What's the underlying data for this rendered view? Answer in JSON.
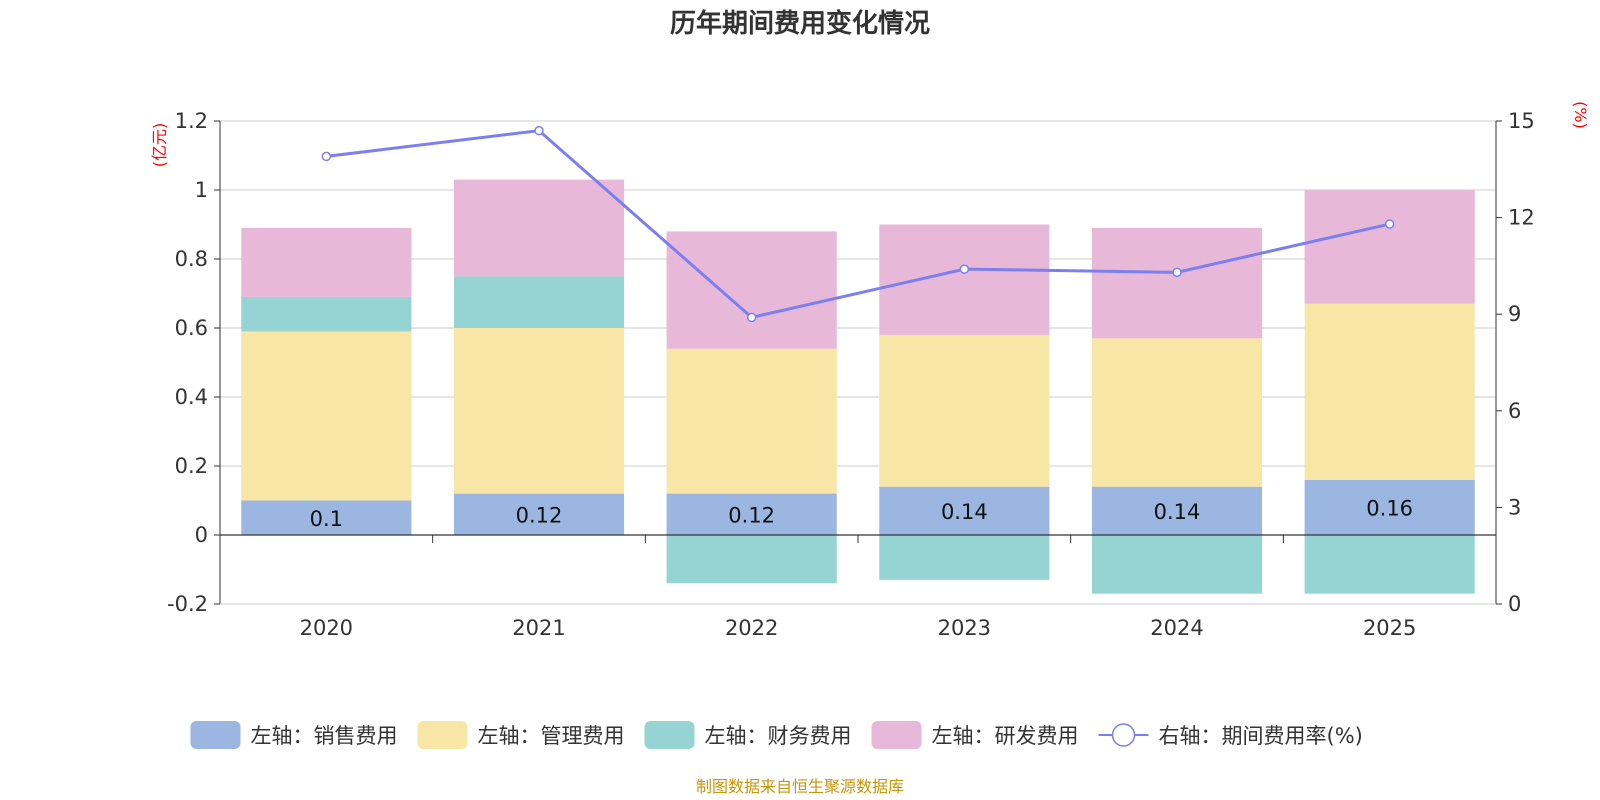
{
  "chart_data": {
    "type": "bar",
    "title": "历年期间费用变化情况",
    "categories": [
      "2020",
      "2021",
      "2022",
      "2023",
      "2024",
      "2025"
    ],
    "left_axis": {
      "unit": "(亿元)",
      "ylim": [
        -0.2,
        1.2
      ],
      "ticks": [
        -0.2,
        0,
        0.2,
        0.4,
        0.6,
        0.8,
        1,
        1.2
      ],
      "tick_labels": [
        "-0.2",
        "0",
        "0.2",
        "0.4",
        "0.6",
        "0.8",
        "1",
        "1.2"
      ]
    },
    "right_axis": {
      "unit": "(%)",
      "ylim": [
        0,
        15
      ],
      "ticks": [
        0,
        3,
        6,
        9,
        12,
        15
      ],
      "tick_labels": [
        "0",
        "3",
        "6",
        "9",
        "12",
        "15"
      ]
    },
    "series": [
      {
        "name": "左轴：销售费用",
        "kind": "bar",
        "axis": "left",
        "color": "#9bb6e0",
        "values": [
          0.1,
          0.12,
          0.12,
          0.14,
          0.14,
          0.16
        ],
        "labels": [
          "0.1",
          "0.12",
          "0.12",
          "0.14",
          "0.14",
          "0.16"
        ]
      },
      {
        "name": "左轴：管理费用",
        "kind": "bar",
        "axis": "left",
        "color": "#f8e6a6",
        "values": [
          0.49,
          0.48,
          0.42,
          0.44,
          0.43,
          0.51
        ]
      },
      {
        "name": "左轴：财务费用",
        "kind": "bar",
        "axis": "left",
        "color": "#96d4d4",
        "values": [
          0.1,
          0.15,
          -0.14,
          -0.13,
          -0.17,
          -0.17
        ]
      },
      {
        "name": "左轴：研发费用",
        "kind": "bar",
        "axis": "left",
        "color": "#e8b8d8",
        "values": [
          0.2,
          0.28,
          0.34,
          0.32,
          0.32,
          0.33
        ]
      },
      {
        "name": "右轴：期间费用率(%)",
        "kind": "line",
        "axis": "right",
        "color": "#7b7ff0",
        "values": [
          13.9,
          14.7,
          8.9,
          10.4,
          10.3,
          11.8
        ]
      }
    ]
  },
  "source": "制图数据来自恒生聚源数据库"
}
